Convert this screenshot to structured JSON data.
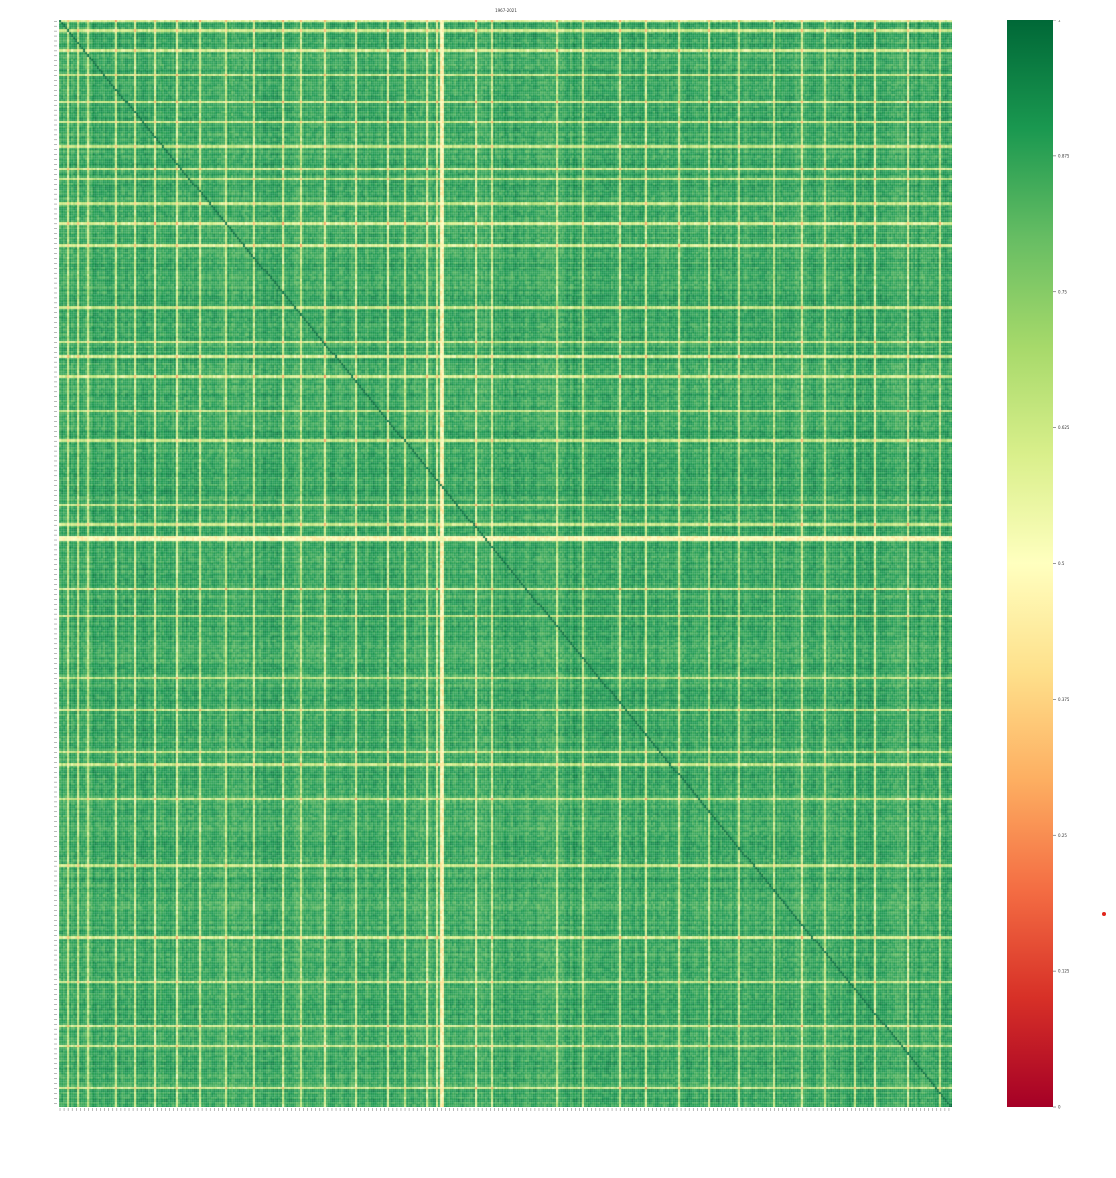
{
  "chart_data": {
    "type": "heatmap",
    "title": "1967-2021",
    "n": 440,
    "row_labels": [],
    "col_labels": [],
    "matrix_summary": {
      "diagonal": 1.0,
      "typical_offdiagonal": 0.88,
      "weak_rows": [
        0,
        4,
        12,
        22,
        33,
        41,
        51,
        60,
        64,
        74,
        82,
        91,
        116,
        130,
        136,
        144,
        158,
        170,
        196,
        204,
        230,
        241,
        266,
        279,
        296,
        301,
        315,
        342,
        371,
        389,
        407,
        415,
        432
      ],
      "very_weak_rows": [
        209,
        210
      ],
      "weak_cols": [
        4,
        9,
        14,
        28,
        37,
        47,
        58,
        69,
        82,
        96,
        110,
        119,
        131,
        146,
        162,
        170,
        181,
        186,
        205,
        213,
        245,
        258,
        276,
        289,
        305,
        320,
        335,
        352,
        366,
        377,
        392,
        402,
        418,
        434
      ],
      "very_weak_cols": [
        188,
        189
      ]
    },
    "colorbar": {
      "colormap": "RdYlGn",
      "vmin": 0.0,
      "vmax": 1.0,
      "ticks": [
        0.0,
        0.125,
        0.25,
        0.375,
        0.5,
        0.625,
        0.75,
        0.875,
        1.0
      ]
    },
    "xlabel": "",
    "ylabel": ""
  }
}
